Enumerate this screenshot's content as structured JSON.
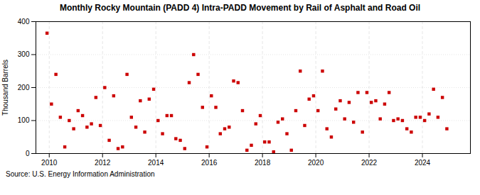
{
  "chart_data": {
    "type": "scatter",
    "title": "Monthly Rocky Mountain (PADD 4) Intra-PADD Movement by Rail of Asphalt and Road Oil",
    "ylabel": "Thousand Barrels",
    "annotations": [
      "Source: U.S. Energy Information Administration"
    ],
    "color": "#cc0000",
    "marker": "square",
    "grid": true,
    "xlim": [
      2009.5,
      2025.8
    ],
    "xticks": [
      2010,
      2012,
      2014,
      2016,
      2018,
      2020,
      2022,
      2024
    ],
    "ylim": [
      0,
      400
    ],
    "yticks": [
      0,
      100,
      200,
      300,
      400
    ],
    "x": [
      2009.917,
      2010.083,
      2010.25,
      2010.417,
      2010.583,
      2010.75,
      2010.917,
      2011.083,
      2011.25,
      2011.417,
      2011.583,
      2011.75,
      2011.917,
      2012.083,
      2012.25,
      2012.417,
      2012.583,
      2012.75,
      2012.917,
      2013.083,
      2013.25,
      2013.417,
      2013.583,
      2013.75,
      2013.917,
      2014.083,
      2014.25,
      2014.417,
      2014.583,
      2014.75,
      2014.917,
      2015.083,
      2015.25,
      2015.417,
      2015.583,
      2015.75,
      2015.917,
      2016.083,
      2016.25,
      2016.417,
      2016.583,
      2016.75,
      2016.917,
      2017.083,
      2017.25,
      2017.417,
      2017.583,
      2017.75,
      2017.917,
      2018.083,
      2018.25,
      2018.417,
      2018.583,
      2018.75,
      2018.917,
      2019.083,
      2019.25,
      2019.417,
      2019.583,
      2019.75,
      2019.917,
      2020.083,
      2020.25,
      2020.417,
      2020.583,
      2020.75,
      2020.917,
      2021.083,
      2021.25,
      2021.417,
      2021.583,
      2021.75,
      2021.917,
      2022.083,
      2022.25,
      2022.417,
      2022.583,
      2022.75,
      2022.917,
      2023.083,
      2023.25,
      2023.417,
      2023.583,
      2023.75,
      2023.917,
      2024.083,
      2024.25,
      2024.417,
      2024.583,
      2024.75,
      2024.917
    ],
    "values": [
      365,
      150,
      240,
      110,
      20,
      100,
      75,
      130,
      115,
      80,
      90,
      170,
      85,
      200,
      40,
      175,
      15,
      20,
      240,
      110,
      80,
      160,
      65,
      165,
      195,
      100,
      60,
      115,
      115,
      45,
      40,
      15,
      215,
      300,
      240,
      140,
      20,
      175,
      140,
      60,
      75,
      80,
      220,
      215,
      130,
      10,
      25,
      90,
      115,
      35,
      35,
      5,
      95,
      105,
      60,
      10,
      130,
      250,
      85,
      165,
      175,
      130,
      250,
      75,
      50,
      135,
      160,
      105,
      155,
      95,
      185,
      65,
      185,
      155,
      160,
      105,
      150,
      185,
      100,
      105,
      100,
      75,
      65,
      110,
      110,
      100,
      120,
      195,
      110,
      170,
      75
    ]
  }
}
